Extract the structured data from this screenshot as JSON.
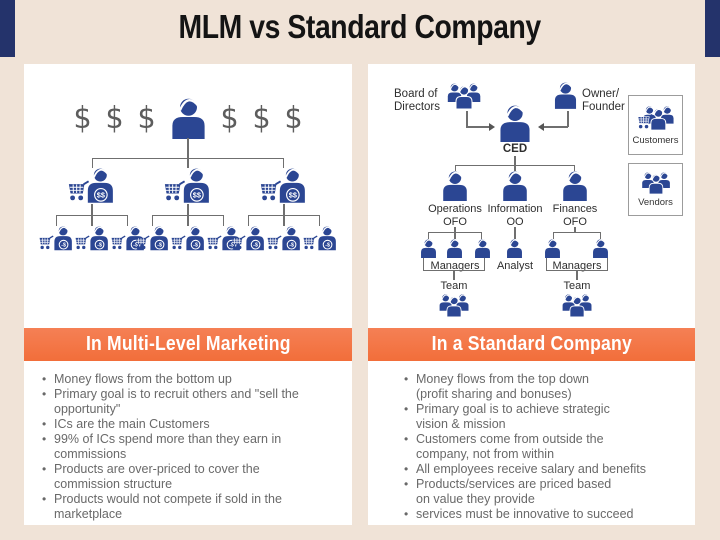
{
  "colors": {
    "background": "#F0E3D7",
    "accent_navy": "#24336B",
    "icon_navy": "#2B4693",
    "banner_orange_top": "#F58055",
    "banner_orange_bottom": "#F26E3A",
    "line_gray": "#6F6F6F",
    "text_gray": "#696969",
    "text_dark": "#2E2E2E",
    "dollar_gray": "#5D5D5D"
  },
  "title": "MLM vs Standard Company",
  "mlm": {
    "banner": "In Multi-Level Marketing",
    "dollar_symbol": "$",
    "level2_badge": "$$",
    "level3_badge": "-$",
    "bullets": [
      "Money flows from the bottom up",
      "Primary goal is to recruit others and \"sell the\nopportunity\"",
      "ICs are the main Customers",
      "99% of ICs spend more than they earn in\ncommissions",
      "Products are over-priced to cover the\ncommission structure",
      "Products would not compete if sold in the\nmarketplace"
    ]
  },
  "company": {
    "banner": "In a Standard Company",
    "board_label": "Board of\nDirectors",
    "owner_label": "Owner/\nFounder",
    "ceo_label": "CED",
    "departments": [
      {
        "label": "Operations",
        "sub": "OFO"
      },
      {
        "label": "Information",
        "sub": "OO"
      },
      {
        "label": "Finances",
        "sub": "OFO"
      }
    ],
    "roles": {
      "managers_left": "Managers",
      "analyst": "Analyst",
      "managers_right": "Managers",
      "team_left": "Team",
      "team_right": "Team"
    },
    "customers_label": "Customers",
    "vendors_label": "Vendors",
    "bullets": [
      "Money flows from the top down\n(profit sharing and bonuses)",
      "Primary goal is to achieve strategic\nvision & mission",
      "Customers come from outside the\ncompany, not from within",
      "All employees receive salary and benefits",
      "Products/services are priced based\non value they provide",
      "services must be innovative to succeed"
    ]
  }
}
